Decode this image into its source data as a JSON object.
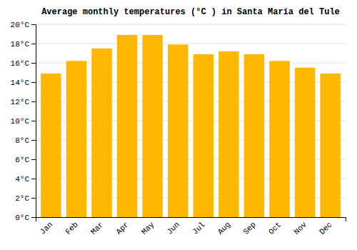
{
  "chart_data": {
    "type": "bar",
    "title": "Average monthly temperatures (°C ) in Santa María del Tule",
    "categories": [
      "Jan",
      "Feb",
      "Mar",
      "Apr",
      "May",
      "Jun",
      "Jul",
      "Aug",
      "Sep",
      "Oct",
      "Nov",
      "Dec"
    ],
    "values": [
      14.9,
      16.2,
      17.5,
      18.9,
      18.9,
      17.9,
      16.9,
      17.2,
      16.9,
      16.2,
      15.5,
      14.9
    ],
    "color": "#FFB700",
    "ylim": [
      0,
      20
    ],
    "yticks": [
      {
        "value": 0,
        "label": "0°C"
      },
      {
        "value": 2,
        "label": "2°C"
      },
      {
        "value": 4,
        "label": "4°C"
      },
      {
        "value": 6,
        "label": "6°C"
      },
      {
        "value": 8,
        "label": "8°C"
      },
      {
        "value": 10,
        "label": "10°C"
      },
      {
        "value": 12,
        "label": "12°C"
      },
      {
        "value": 14,
        "label": "14°C"
      },
      {
        "value": 16,
        "label": "16°C"
      },
      {
        "value": 18,
        "label": "18°C"
      },
      {
        "value": 20,
        "label": "20°C"
      }
    ],
    "grid": true
  }
}
